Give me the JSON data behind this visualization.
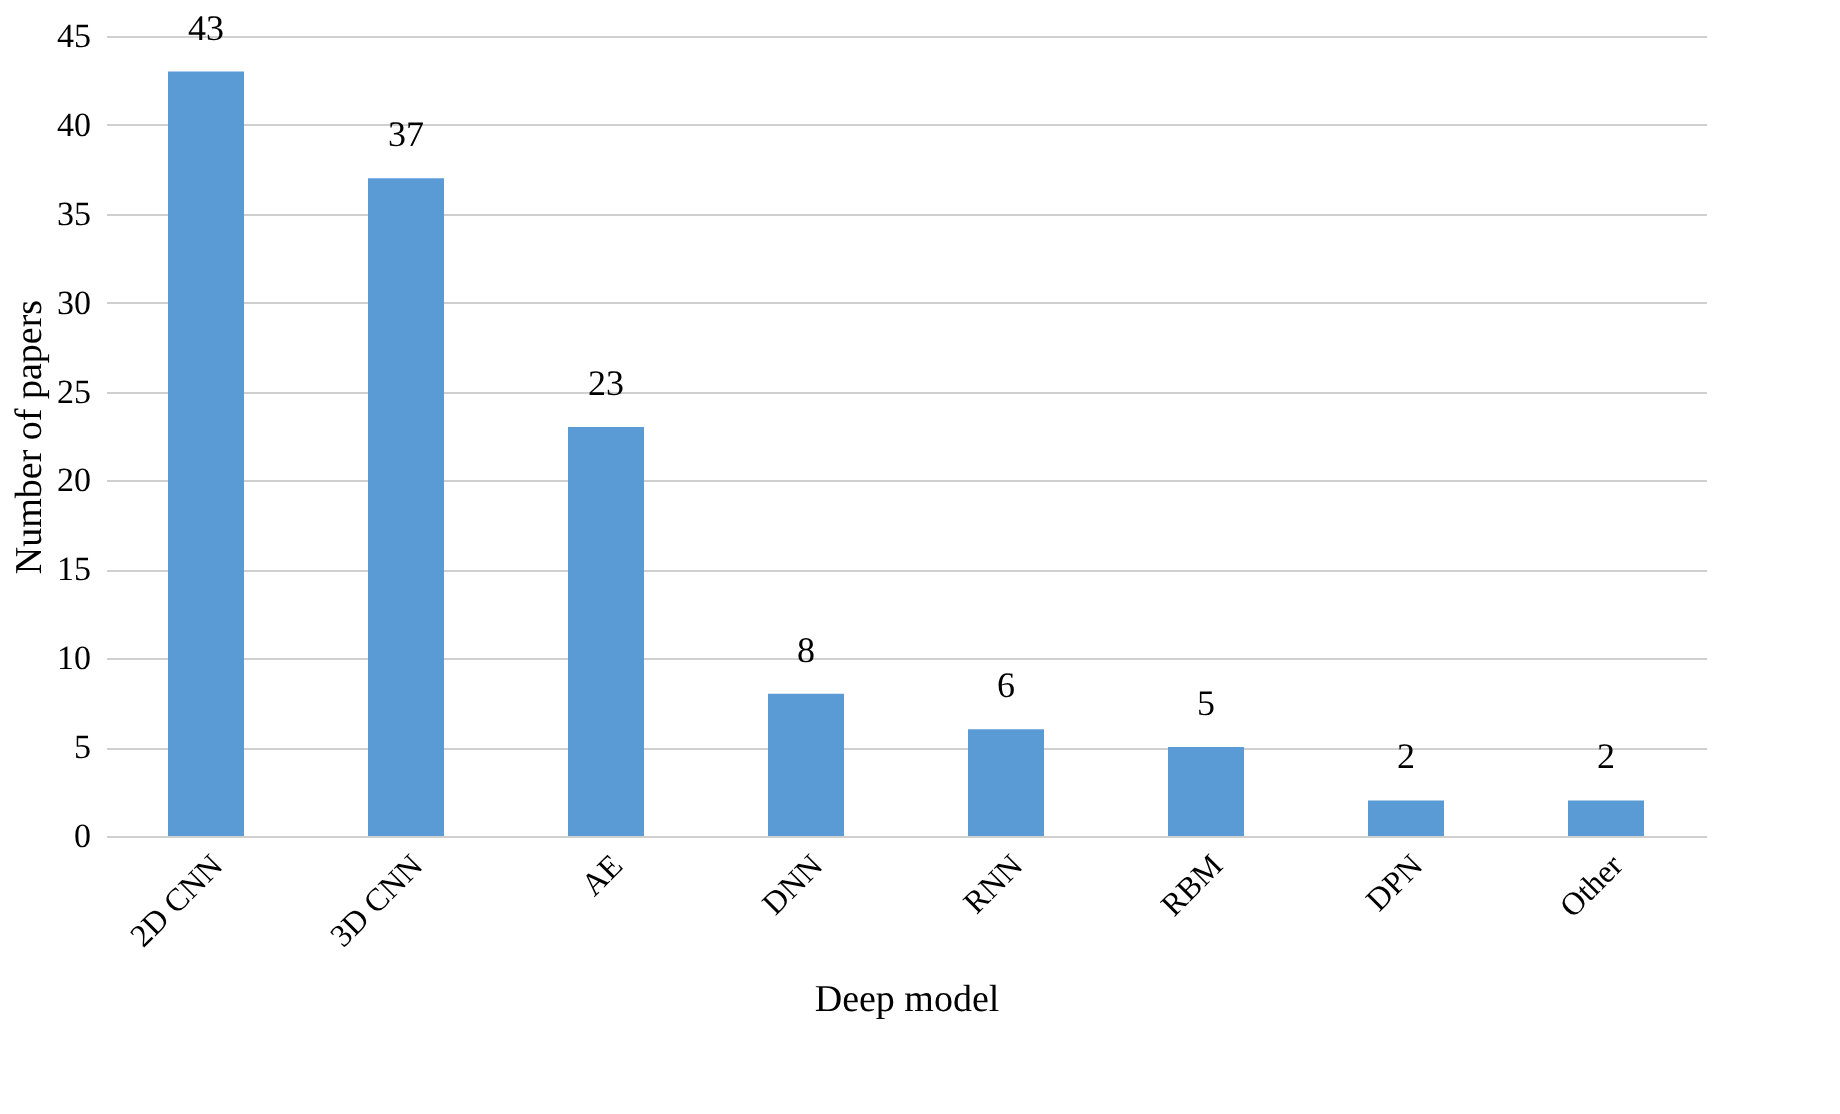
{
  "chart_data": {
    "type": "bar",
    "xlabel": "Deep model",
    "ylabel": "Number of papers",
    "categories": [
      "2D CNN",
      "3D CNN",
      "AE",
      "DNN",
      "RNN",
      "RBM",
      "DPN",
      "Other"
    ],
    "values": [
      43,
      37,
      23,
      8,
      6,
      5,
      2,
      2
    ],
    "color": "#5b9bd5",
    "ylim": [
      0,
      45
    ],
    "yticks": [
      0,
      5,
      10,
      15,
      20,
      25,
      30,
      35,
      40,
      45
    ],
    "grid": "y",
    "data_labels": true
  }
}
